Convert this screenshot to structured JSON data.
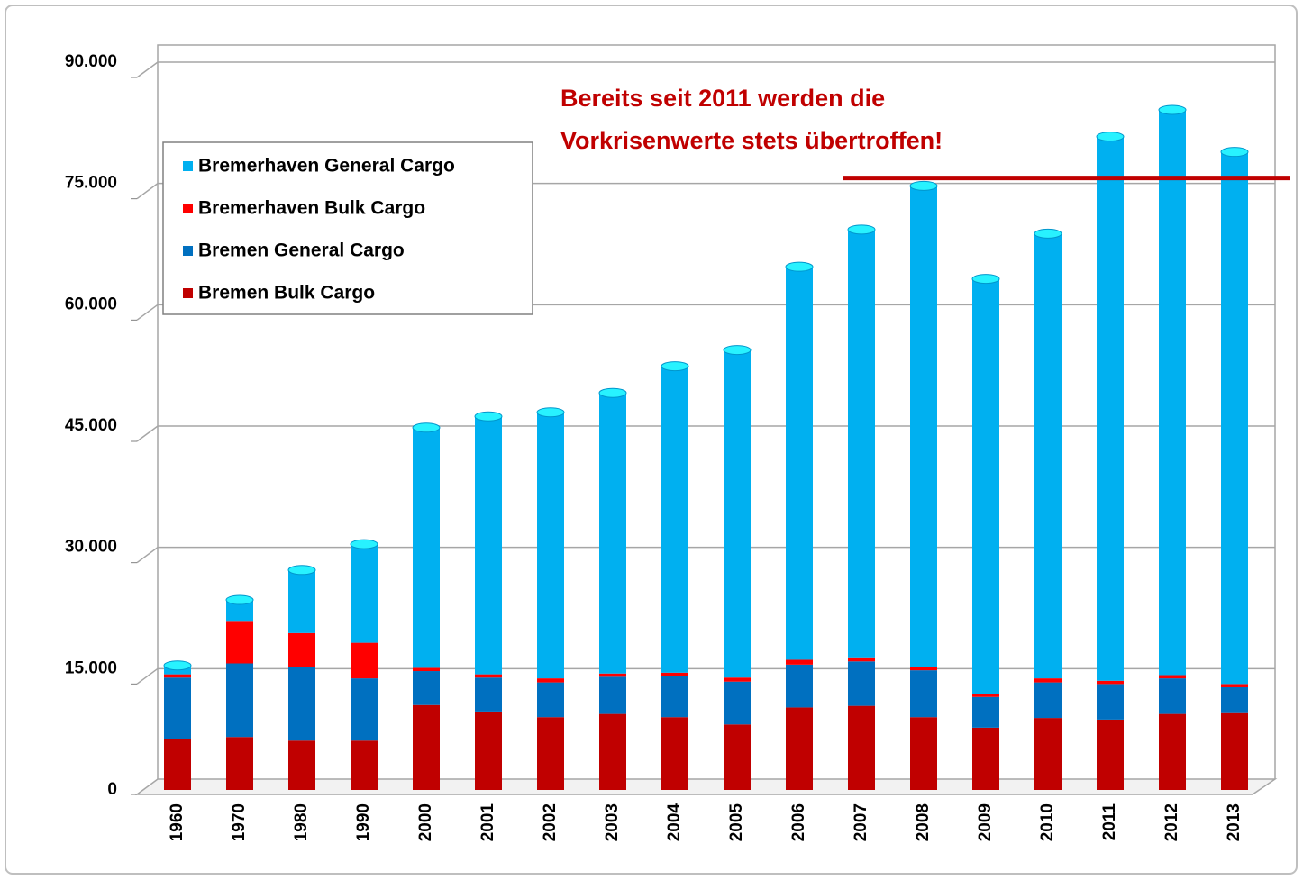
{
  "chart_data": {
    "type": "bar",
    "stacked": true,
    "categories": [
      "1960",
      "1970",
      "1980",
      "1990",
      "2000",
      "2001",
      "2002",
      "2003",
      "2004",
      "2005",
      "2006",
      "2007",
      "2008",
      "2009",
      "2010",
      "2011",
      "2012",
      "2013"
    ],
    "series": [
      {
        "name": "Bremen Bulk Cargo",
        "color": "#c00000",
        "values": [
          6300,
          6550,
          6100,
          6100,
          10500,
          9700,
          9000,
          9400,
          9000,
          8100,
          10200,
          10400,
          9000,
          7700,
          8900,
          8700,
          9400,
          9500
        ]
      },
      {
        "name": "Bremen General Cargo",
        "color": "#0070c0",
        "values": [
          7600,
          9100,
          9100,
          7700,
          4200,
          4200,
          4300,
          4600,
          5100,
          5300,
          5300,
          5500,
          5800,
          3800,
          4400,
          4400,
          4400,
          3200
        ]
      },
      {
        "name": "Bremerhaven Bulk Cargo",
        "color": "#ff0000",
        "values": [
          400,
          5150,
          4200,
          4400,
          400,
          400,
          500,
          400,
          400,
          500,
          600,
          500,
          400,
          400,
          500,
          400,
          400,
          400
        ]
      },
      {
        "name": "Bremerhaven General Cargo",
        "color": "#00b0f0",
        "values": [
          1100,
          2700,
          7800,
          12200,
          29700,
          31900,
          32900,
          34700,
          37900,
          40500,
          48600,
          52900,
          59500,
          51300,
          55000,
          67300,
          69900,
          65800
        ]
      }
    ],
    "ylim": [
      0,
      90000
    ],
    "yticks": [
      0,
      {
        "value": 15000,
        "label": "15.000"
      },
      {
        "value": 30000,
        "label": "30.000"
      },
      {
        "value": 45000,
        "label": "45.000"
      },
      {
        "value": 60000,
        "label": "60.000"
      },
      {
        "value": 75000,
        "label": "75.000"
      },
      {
        "value": 90000,
        "label": "90.000"
      }
    ],
    "grid": true,
    "legend": "upper left",
    "annotation": [
      "Bereits seit 2011 werden die",
      "Vorkrisenwerte stets übertroffen!"
    ],
    "reference_line": 75000,
    "reference_color": "#c00000"
  }
}
